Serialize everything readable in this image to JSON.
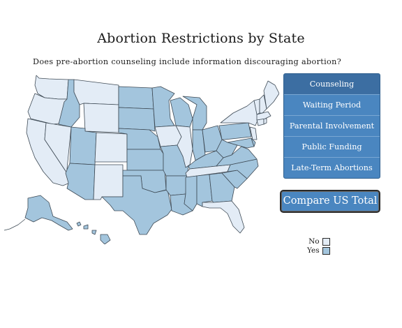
{
  "title": "Abortion Restrictions by State",
  "question": "Does pre-abortion counseling include information discouraging abortion?",
  "menu": {
    "items": [
      {
        "label": "Counseling",
        "active": true
      },
      {
        "label": "Waiting Period",
        "active": false
      },
      {
        "label": "Parental Involvement",
        "active": false
      },
      {
        "label": "Public Funding",
        "active": false
      },
      {
        "label": "Late-Term Abortions",
        "active": false
      }
    ]
  },
  "compare_label": "Compare US Total",
  "legend": {
    "no_label": "No",
    "yes_label": "Yes",
    "no_color": "#e3ecf6",
    "yes_color": "#a3c5dd"
  },
  "colors": {
    "button": "#4a86c0",
    "button_active": "#3c6ea2",
    "state_border": "#3e4a55"
  }
}
